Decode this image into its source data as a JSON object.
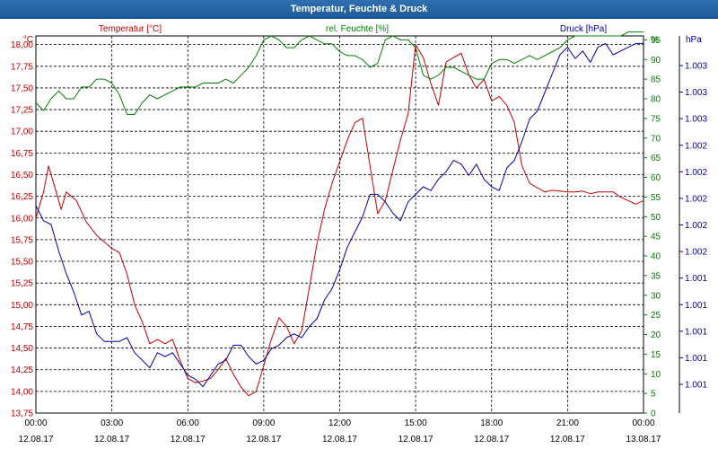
{
  "window": {
    "title": "Temperatur, Feuchte & Druck"
  },
  "chart_data": {
    "type": "line",
    "title": "Temperatur, Feuchte & Druck",
    "x_tick_labels": [
      [
        "00:00",
        "12.08.17"
      ],
      [
        "03:00",
        "12.08.17"
      ],
      [
        "06:00",
        "12.08.17"
      ],
      [
        "09:00",
        "12.08.17"
      ],
      [
        "12:00",
        "12.08.17"
      ],
      [
        "15:00",
        "12.08.17"
      ],
      [
        "18:00",
        "12.08.17"
      ],
      [
        "21:00",
        "12.08.17"
      ],
      [
        "00:00",
        "13.08.17"
      ]
    ],
    "xlim": [
      0,
      24
    ],
    "axes": {
      "temperature": {
        "label": "Temperatur [°C]",
        "unit": "°C",
        "color": "#c00000",
        "ylim": [
          13.75,
          18.1
        ],
        "ticks": [
          "13,75",
          "14,00",
          "14,25",
          "14,50",
          "14,75",
          "15,00",
          "15,25",
          "15,50",
          "15,75",
          "16,00",
          "16,25",
          "16,50",
          "16,75",
          "17,00",
          "17,25",
          "17,50",
          "17,75",
          "18,00"
        ]
      },
      "humidity": {
        "label": "rel. Feuchte [%]",
        "unit": "%",
        "color": "#008000",
        "ylim": [
          0,
          96
        ],
        "ticks": [
          "0",
          "5",
          "10",
          "15",
          "20",
          "25",
          "30",
          "35",
          "40",
          "45",
          "50",
          "55",
          "60",
          "65",
          "70",
          "75",
          "80",
          "85",
          "90",
          "95"
        ]
      },
      "pressure": {
        "label": "Druck [hPa]",
        "unit": "hPa",
        "color": "#0000a0",
        "ticks": [
          "1.001",
          "1.001",
          "1.001",
          "1.001",
          "1.001",
          "1.002",
          "1.002",
          "1.002",
          "1.002",
          "1.002",
          "1.003",
          "1.003",
          "1.003"
        ]
      }
    },
    "grid": true,
    "series": [
      {
        "name": "Temperatur [°C]",
        "axis": "temperature",
        "color": "#c00000",
        "x": [
          0,
          0.3,
          0.5,
          0.8,
          1.0,
          1.2,
          1.6,
          2.0,
          2.4,
          2.8,
          3.0,
          3.3,
          3.6,
          3.9,
          4.2,
          4.5,
          4.8,
          5.1,
          5.4,
          5.7,
          6.0,
          6.3,
          6.6,
          6.9,
          7.2,
          7.5,
          7.8,
          8.1,
          8.4,
          8.7,
          9.0,
          9.3,
          9.6,
          9.9,
          10.2,
          10.5,
          10.8,
          11.1,
          11.4,
          11.7,
          12.0,
          12.3,
          12.6,
          12.9,
          13.2,
          13.5,
          13.8,
          14.1,
          14.4,
          14.7,
          15.0,
          15.3,
          15.6,
          15.9,
          16.2,
          16.5,
          16.8,
          17.1,
          17.4,
          17.7,
          18.0,
          18.3,
          18.6,
          18.9,
          19.2,
          19.5,
          19.8,
          20.1,
          20.4,
          20.7,
          21.0,
          21.3,
          21.6,
          21.9,
          22.2,
          22.5,
          22.8,
          23.1,
          23.4,
          23.7,
          24.0
        ],
        "values": [
          16.0,
          16.3,
          16.6,
          16.3,
          16.1,
          16.3,
          16.2,
          15.95,
          15.8,
          15.7,
          15.65,
          15.6,
          15.35,
          15.0,
          14.8,
          14.55,
          14.6,
          14.55,
          14.6,
          14.35,
          14.15,
          14.1,
          14.12,
          14.15,
          14.25,
          14.38,
          14.2,
          14.05,
          13.95,
          14.0,
          14.3,
          14.6,
          14.85,
          14.75,
          14.55,
          14.7,
          15.2,
          15.7,
          16.1,
          16.4,
          16.65,
          16.9,
          17.1,
          17.15,
          16.6,
          16.05,
          16.2,
          16.55,
          16.9,
          17.2,
          18.0,
          17.85,
          17.55,
          17.3,
          17.8,
          17.85,
          17.9,
          17.65,
          17.5,
          17.6,
          17.35,
          17.4,
          17.3,
          17.1,
          16.6,
          16.4,
          16.35,
          16.3,
          16.32,
          16.31,
          16.3,
          16.3,
          16.31,
          16.28,
          16.3,
          16.3,
          16.3,
          16.24,
          16.2,
          16.16,
          16.2
        ]
      },
      {
        "name": "rel. Feuchte [%]",
        "axis": "humidity",
        "color": "#008000",
        "x": [
          0,
          0.3,
          0.6,
          0.9,
          1.2,
          1.5,
          1.8,
          2.1,
          2.4,
          2.7,
          3.0,
          3.3,
          3.6,
          3.9,
          4.2,
          4.5,
          4.8,
          5.1,
          5.4,
          5.7,
          6.0,
          6.3,
          6.6,
          6.9,
          7.2,
          7.5,
          7.8,
          8.1,
          8.4,
          8.7,
          9.0,
          9.3,
          9.6,
          9.9,
          10.2,
          10.5,
          10.8,
          11.1,
          11.4,
          11.7,
          12.0,
          12.3,
          12.6,
          12.9,
          13.2,
          13.5,
          13.8,
          14.1,
          14.4,
          14.7,
          15.0,
          15.3,
          15.6,
          15.9,
          16.2,
          16.5,
          16.8,
          17.1,
          17.4,
          17.7,
          18.0,
          18.3,
          18.6,
          18.9,
          19.2,
          19.5,
          19.8,
          20.1,
          20.4,
          20.7,
          21.0,
          21.3,
          21.6,
          21.9,
          22.2,
          22.5,
          22.8,
          23.1,
          23.4,
          23.7,
          24.0
        ],
        "values": [
          79,
          77,
          80,
          82,
          80,
          80,
          83,
          83,
          85,
          85,
          84,
          81,
          76,
          76,
          79,
          81,
          80,
          81,
          82,
          83,
          83,
          83,
          84,
          84,
          84,
          85,
          84,
          86,
          88,
          91,
          95,
          96,
          95,
          93,
          93,
          95,
          96,
          95,
          94,
          94,
          92,
          91,
          91,
          90,
          88,
          89,
          95,
          96,
          95,
          95,
          93,
          86,
          85,
          86,
          88,
          88,
          87,
          86,
          85,
          85,
          89,
          90,
          90,
          89,
          90,
          91,
          90,
          91,
          92,
          93,
          95,
          96,
          96,
          96,
          96,
          96,
          96,
          96,
          97,
          97,
          97
        ]
      },
      {
        "name": "Druck [hPa]",
        "axis": "pressure",
        "color": "#0000a0",
        "x": [
          0,
          0.3,
          0.6,
          0.9,
          1.2,
          1.5,
          1.8,
          2.1,
          2.4,
          2.7,
          3.0,
          3.3,
          3.6,
          3.9,
          4.2,
          4.5,
          4.8,
          5.1,
          5.4,
          5.7,
          6.0,
          6.3,
          6.6,
          6.9,
          7.2,
          7.5,
          7.8,
          8.1,
          8.4,
          8.7,
          9.0,
          9.3,
          9.6,
          9.9,
          10.2,
          10.5,
          10.8,
          11.1,
          11.4,
          11.7,
          12.0,
          12.3,
          12.6,
          12.9,
          13.2,
          13.5,
          13.8,
          14.1,
          14.4,
          14.7,
          15.0,
          15.3,
          15.6,
          15.9,
          16.2,
          16.5,
          16.8,
          17.1,
          17.4,
          17.7,
          18.0,
          18.3,
          18.6,
          18.9,
          19.2,
          19.5,
          19.8,
          20.1,
          20.4,
          20.7,
          21.0,
          21.3,
          21.6,
          21.9,
          22.2,
          22.5,
          22.8,
          23.1,
          23.4,
          23.7,
          24.0
        ],
        "values": [
          55,
          51,
          50,
          43,
          37,
          32,
          26,
          27,
          21,
          19,
          19,
          19,
          20,
          16,
          14,
          12,
          16,
          15,
          16,
          13,
          10,
          9,
          7,
          10,
          13,
          14,
          18,
          18,
          15,
          13,
          14,
          17,
          18,
          20,
          21,
          20,
          23,
          25,
          30,
          33,
          38,
          44,
          48,
          52,
          58,
          58,
          56,
          53,
          51,
          56,
          58,
          60,
          59,
          62,
          64,
          67,
          66,
          63,
          66,
          62,
          60,
          59,
          65,
          67,
          72,
          78,
          80,
          85,
          90,
          95,
          97,
          94,
          96,
          93,
          97,
          98,
          95,
          96,
          97,
          98,
          98
        ]
      }
    ]
  }
}
